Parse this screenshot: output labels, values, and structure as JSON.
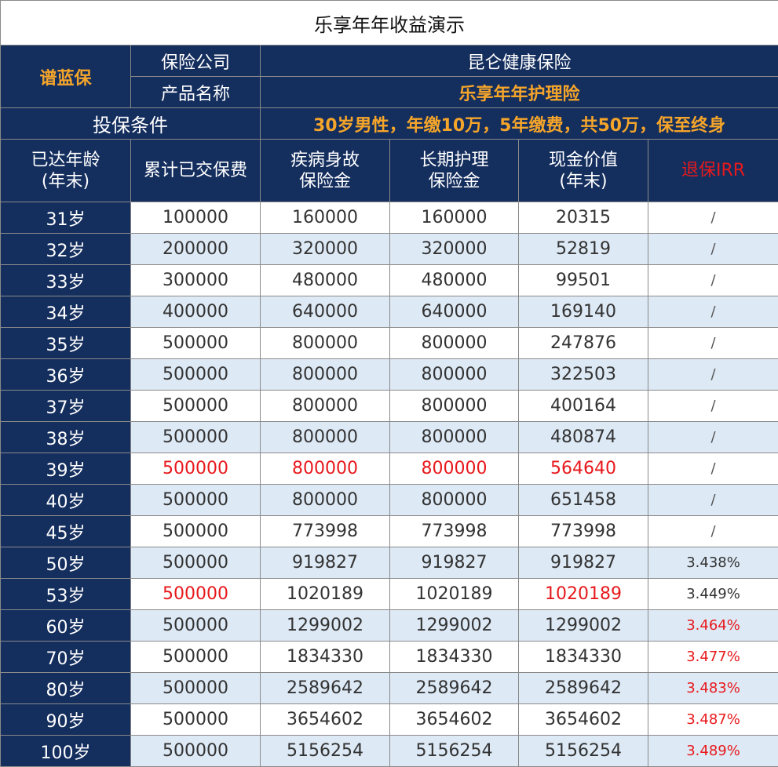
{
  "title": "乐享年年收益演示",
  "brand": "谱蓝保",
  "company_label": "保险公司",
  "company_value": "昆仑健康保险",
  "product_label": "产品名称",
  "product_value": "乐享年年护理险",
  "condition_label": "投保条件",
  "condition_value": "30岁男性，年缴10万，5年缴费，共50万，保至终身",
  "headers": {
    "age": [
      "已达年龄",
      "(年末)"
    ],
    "premium": [
      "累计已交保费"
    ],
    "death": [
      "疾病身故",
      "保险金"
    ],
    "care": [
      "长期护理",
      "保险金"
    ],
    "cash": [
      "现金价值",
      "(年末)"
    ],
    "irr": [
      "退保IRR"
    ]
  },
  "rows": [
    {
      "age": "31岁",
      "premium": "100000",
      "death": "160000",
      "care": "160000",
      "cash": "20315",
      "irr": "/"
    },
    {
      "age": "32岁",
      "premium": "200000",
      "death": "320000",
      "care": "320000",
      "cash": "52819",
      "irr": "/"
    },
    {
      "age": "33岁",
      "premium": "300000",
      "death": "480000",
      "care": "480000",
      "cash": "99501",
      "irr": "/"
    },
    {
      "age": "34岁",
      "premium": "400000",
      "death": "640000",
      "care": "640000",
      "cash": "169140",
      "irr": "/"
    },
    {
      "age": "35岁",
      "premium": "500000",
      "death": "800000",
      "care": "800000",
      "cash": "247876",
      "irr": "/"
    },
    {
      "age": "36岁",
      "premium": "500000",
      "death": "800000",
      "care": "800000",
      "cash": "322503",
      "irr": "/"
    },
    {
      "age": "37岁",
      "premium": "500000",
      "death": "800000",
      "care": "800000",
      "cash": "400164",
      "irr": "/"
    },
    {
      "age": "38岁",
      "premium": "500000",
      "death": "800000",
      "care": "800000",
      "cash": "480874",
      "irr": "/"
    },
    {
      "age": "39岁",
      "premium": "500000",
      "death": "800000",
      "care": "800000",
      "cash": "564640",
      "irr": "/"
    },
    {
      "age": "40岁",
      "premium": "500000",
      "death": "800000",
      "care": "800000",
      "cash": "651458",
      "irr": "/"
    },
    {
      "age": "45岁",
      "premium": "500000",
      "death": "773998",
      "care": "773998",
      "cash": "773998",
      "irr": "/"
    },
    {
      "age": "50岁",
      "premium": "500000",
      "death": "919827",
      "care": "919827",
      "cash": "919827",
      "irr": "3.438%"
    },
    {
      "age": "53岁",
      "premium": "500000",
      "death": "1020189",
      "care": "1020189",
      "cash": "1020189",
      "irr": "3.449%"
    },
    {
      "age": "60岁",
      "premium": "500000",
      "death": "1299002",
      "care": "1299002",
      "cash": "1299002",
      "irr": "3.464%"
    },
    {
      "age": "70岁",
      "premium": "500000",
      "death": "1834330",
      "care": "1834330",
      "cash": "1834330",
      "irr": "3.477%"
    },
    {
      "age": "80岁",
      "premium": "500000",
      "death": "2589642",
      "care": "2589642",
      "cash": "2589642",
      "irr": "3.483%"
    },
    {
      "age": "90岁",
      "premium": "500000",
      "death": "3654602",
      "care": "3654602",
      "cash": "3654602",
      "irr": "3.487%"
    },
    {
      "age": "100岁",
      "premium": "500000",
      "death": "5156254",
      "care": "5156254",
      "cash": "5156254",
      "irr": "3.489%"
    }
  ],
  "highlight_color": "#e8191c",
  "header_color": "#142e5e",
  "accent_color": "#f5a52a",
  "alt_row_color": "#dde9f5"
}
